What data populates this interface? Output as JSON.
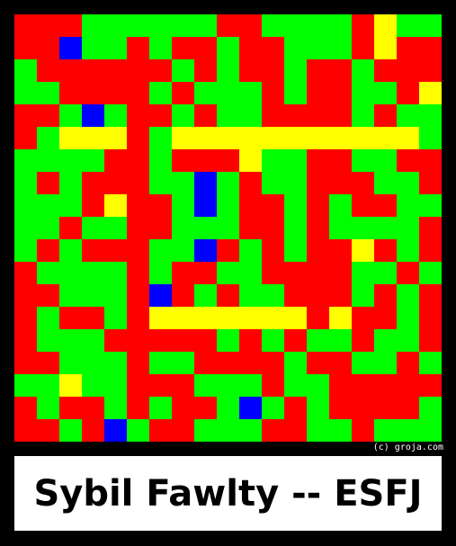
{
  "credit": "(c) groja.com",
  "caption": "Sybil Fawlty -- ESFJ",
  "palette": {
    "R": "#ff0000",
    "G": "#00ff00",
    "B": "#0000ff",
    "Y": "#ffff00"
  },
  "cell_rows": [
    "RRRGGGGGGRRGGGGRYGG",
    "RRBGGRGRRGRRGGGRYRR",
    "GRRRRRRGRGRRGRRGRRR",
    "GGRRRRGRGGGRGRRGGRY",
    "RRGBGRRGRGGRRRRGRGG",
    "RGYYYRGYYYYYYYYYYYG",
    "GGGGRRGRRRYGGRRGGRR",
    "GRGRRRGGBGRGGRRRGGR",
    "GGGRYRRGBGRRGRGRRGG",
    "GGRGGRRGGGRRGRGGGGR",
    "GRGRRRGGBRGRGRRYRGR",
    "RGGGGRGRRGGRRRRGGRG",
    "RRGGGRBRGRGGRRRGRGR",
    "RGRRGRYYYYYYYRYRRGR",
    "RGGGRRRRRGRGRGGRGGR",
    "RRGGGRGGRRRRGRRGGRG",
    "GGYGGRRRGGGRGGRRRRR",
    "RGRRGRGRRGBGRGRRRRG",
    "RRGRBGRRGGGRRGGRGGG"
  ]
}
